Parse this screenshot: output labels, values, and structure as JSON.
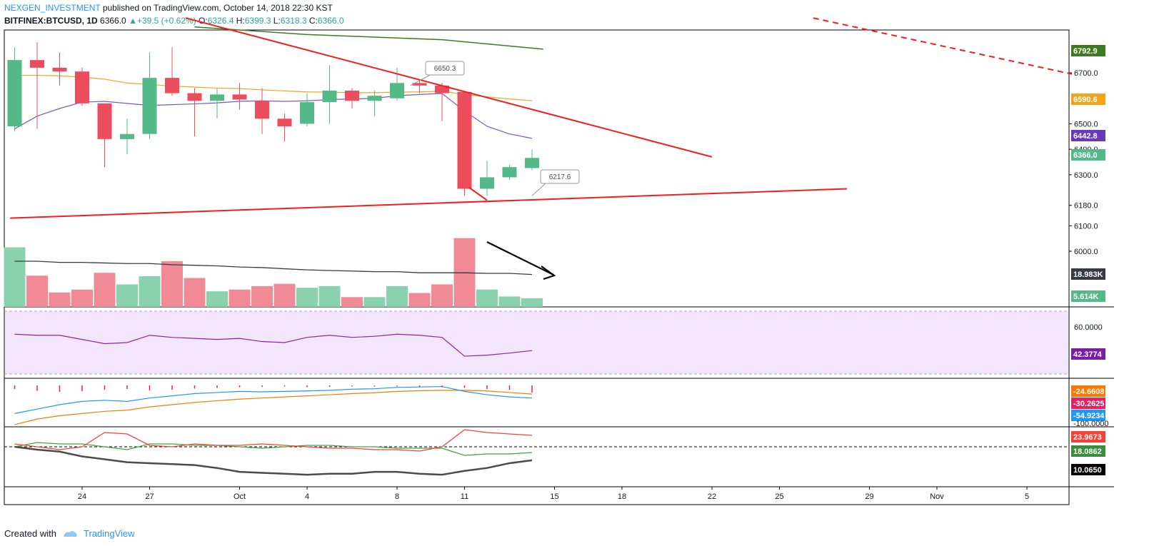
{
  "header": {
    "author": "NEXGEN_INVESTMENT",
    "published": "published on TradingView.com, October 14, 2018 22:30 KST",
    "symbol": "BITFINEX:BTCUSD, 1D",
    "last": "6366.0",
    "change": "+39.5 (+0.62%)",
    "o_label": "O:",
    "o": "6326.4",
    "h_label": "H:",
    "h": "6399.3",
    "l_label": "L:",
    "l": "6318.3",
    "c_label": "C:",
    "c": "6366.0"
  },
  "footer": {
    "created_with": "Created with",
    "brand": "TradingView"
  },
  "chart_data": {
    "type": "candlestick",
    "price_axis": {
      "ticks": [
        "6700.0",
        "6500.0",
        "6400.0",
        "6300.0",
        "6180.0",
        "6100.0",
        "6000.0"
      ],
      "tick_values": [
        6700,
        6500,
        6400,
        6300,
        6180,
        6100,
        6000
      ]
    },
    "x_axis": {
      "ticks": [
        "24",
        "27",
        "Oct",
        "4",
        "8",
        "11",
        "15",
        "18",
        "22",
        "25",
        "29",
        "Nov",
        "5"
      ],
      "tick_day_index": [
        3,
        6,
        10,
        13,
        17,
        20,
        24,
        27,
        31,
        34,
        38,
        41,
        45
      ]
    },
    "candles": [
      {
        "o": 6490,
        "h": 6800,
        "l": 6470,
        "c": 6750
      },
      {
        "o": 6750,
        "h": 6820,
        "l": 6480,
        "c": 6720
      },
      {
        "o": 6720,
        "h": 6780,
        "l": 6650,
        "c": 6705
      },
      {
        "o": 6705,
        "h": 6720,
        "l": 6570,
        "c": 6580
      },
      {
        "o": 6580,
        "h": 6580,
        "l": 6330,
        "c": 6440
      },
      {
        "o": 6440,
        "h": 6520,
        "l": 6380,
        "c": 6460
      },
      {
        "o": 6460,
        "h": 6780,
        "l": 6440,
        "c": 6680
      },
      {
        "o": 6680,
        "h": 6800,
        "l": 6610,
        "c": 6620
      },
      {
        "o": 6620,
        "h": 6640,
        "l": 6450,
        "c": 6590
      },
      {
        "o": 6590,
        "h": 6640,
        "l": 6520,
        "c": 6615
      },
      {
        "o": 6615,
        "h": 6660,
        "l": 6555,
        "c": 6595
      },
      {
        "o": 6590,
        "h": 6640,
        "l": 6460,
        "c": 6520
      },
      {
        "o": 6520,
        "h": 6540,
        "l": 6430,
        "c": 6490
      },
      {
        "o": 6500,
        "h": 6620,
        "l": 6490,
        "c": 6585
      },
      {
        "o": 6585,
        "h": 6730,
        "l": 6500,
        "c": 6630
      },
      {
        "o": 6630,
        "h": 6640,
        "l": 6560,
        "c": 6590
      },
      {
        "o": 6590,
        "h": 6630,
        "l": 6530,
        "c": 6610
      },
      {
        "o": 6600,
        "h": 6720,
        "l": 6590,
        "c": 6660
      },
      {
        "o": 6660,
        "h": 6670,
        "l": 6620,
        "c": 6650
      },
      {
        "o": 6650,
        "h": 6660,
        "l": 6510,
        "c": 6620
      },
      {
        "o": 6625,
        "h": 6625,
        "l": 6217,
        "c": 6245
      },
      {
        "o": 6245,
        "h": 6355,
        "l": 6217,
        "c": 6290
      },
      {
        "o": 6290,
        "h": 6340,
        "l": 6280,
        "c": 6330
      },
      {
        "o": 6326.4,
        "h": 6399.3,
        "l": 6318.3,
        "c": 6366.0
      }
    ],
    "volume": [
      10.3,
      5.4,
      2.5,
      3.0,
      5.9,
      3.9,
      5.3,
      7.9,
      5.0,
      2.7,
      3.0,
      3.6,
      4.0,
      3.3,
      3.6,
      1.7,
      1.7,
      3.6,
      2.4,
      3.9,
      11.9,
      3.0,
      1.8,
      1.5
    ],
    "volume_ma": [
      7.9,
      7.9,
      7.7,
      7.7,
      7.6,
      7.5,
      7.5,
      7.3,
      7.2,
      7.1,
      6.9,
      6.8,
      6.6,
      6.4,
      6.3,
      6.2,
      6.1,
      6.1,
      5.9,
      5.9,
      5.9,
      5.8,
      5.8,
      5.6
    ],
    "ma_long_green": [
      {
        "d": 8,
        "v": 6880
      },
      {
        "d": 13,
        "v": 6850
      },
      {
        "d": 19,
        "v": 6830
      },
      {
        "d": 23.5,
        "v": 6792.9
      }
    ],
    "ma_orange": [
      6690,
      6690,
      6688,
      6683,
      6675,
      6660,
      6654,
      6648,
      6644,
      6640,
      6638,
      6633,
      6629,
      6625,
      6624,
      6622,
      6622,
      6624,
      6625,
      6628,
      6615,
      6606,
      6597,
      6590.6
    ],
    "ma_purple": [
      6480,
      6530,
      6560,
      6585,
      6588,
      6580,
      6572,
      6575,
      6578,
      6582,
      6588,
      6590,
      6588,
      6590,
      6595,
      6597,
      6600,
      6610,
      6615,
      6619,
      6550,
      6490,
      6460,
      6442.8
    ],
    "trendlines": [
      {
        "name": "descending resistance",
        "from": {
          "d": 7.6,
          "v": 6915
        },
        "to": {
          "d": 31,
          "v": 6370
        }
      },
      {
        "name": "descending resistance extension",
        "from": {
          "d": 35.5,
          "v": 6915
        },
        "to": {
          "d": 47,
          "v": 6695
        },
        "dashed": true
      },
      {
        "name": "ascending support",
        "from": {
          "d": -0.2,
          "v": 6130
        },
        "to": {
          "d": 37,
          "v": 6245
        }
      }
    ],
    "annotations": [
      {
        "text": "6650.3",
        "d": 17.6,
        "v": 6650.3
      },
      {
        "text": "6217.6",
        "d": 23,
        "v": 6217.6
      }
    ],
    "rsi": {
      "ticks": [
        "60.0000"
      ],
      "values": [
        58,
        57,
        57,
        53,
        49,
        50,
        57,
        55,
        54,
        53,
        54,
        51,
        50,
        55,
        57,
        55,
        56,
        58,
        57,
        55,
        37,
        38,
        40,
        42.3774
      ],
      "current_label": "42.3774"
    },
    "macd": {
      "labels": [
        "-24.6608",
        "-30.2625",
        "-54.9234",
        "-100.0000"
      ],
      "fast": [
        -160,
        -140,
        -120,
        -105,
        -100,
        -105,
        -90,
        -80,
        -70,
        -65,
        -60,
        -62,
        -60,
        -58,
        -55,
        -50,
        -48,
        -42,
        -40,
        -38,
        -60,
        -75,
        -85,
        -90
      ],
      "slow": [
        -210,
        -185,
        -170,
        -160,
        -150,
        -145,
        -130,
        -120,
        -110,
        -102,
        -95,
        -90,
        -85,
        -80,
        -75,
        -70,
        -66,
        -60,
        -57,
        -55,
        -55,
        -58,
        -65,
        -72
      ],
      "hist": [
        -10,
        -15,
        -18,
        -16,
        -12,
        -10,
        -14,
        -12,
        -9,
        -7,
        -5,
        -4,
        -3,
        -5,
        -4,
        -3,
        -3,
        -3,
        -4,
        -5,
        -7,
        -10,
        -12,
        -20
      ]
    },
    "dmi": {
      "labels": [
        "23.9673",
        "18.0862",
        "10.0650"
      ],
      "plus_di": [
        18,
        21,
        20,
        20,
        18,
        16,
        20,
        20,
        19,
        19,
        18,
        17,
        18,
        19,
        19,
        18,
        18,
        17,
        17,
        17,
        12,
        13,
        13,
        14
      ],
      "minus_di": [
        20,
        18,
        16,
        18,
        28,
        27,
        19,
        18,
        20,
        19,
        19,
        20,
        19,
        18,
        17,
        17,
        16,
        16,
        15,
        18,
        30,
        28,
        27,
        26
      ],
      "adx": [
        20,
        17,
        15,
        10,
        7,
        4,
        3,
        2,
        1,
        -2,
        -6,
        -7,
        -8,
        -9,
        -8,
        -8,
        -6,
        -6,
        -8,
        -9,
        -5,
        -2,
        3,
        6
      ],
      "reference_line": 18
    },
    "price_tags": [
      {
        "text": "6792.9",
        "color": "#3d7a21"
      },
      {
        "text": "6590.6",
        "color": "#f4a31b"
      },
      {
        "text": "6442.8",
        "color": "#673ab7"
      },
      {
        "text": "6366.0",
        "color": "#53b987"
      },
      {
        "text": "18.983K",
        "color": "#363a45"
      },
      {
        "text": "5.614K",
        "color": "#53b987"
      },
      {
        "text": "42.3774",
        "color": "#7b1fa2"
      },
      {
        "text": "-24.6608",
        "color": "#f57c00"
      },
      {
        "text": "-30.2625",
        "color": "#e91e63"
      },
      {
        "text": "-54.9234",
        "color": "#2196f3"
      },
      {
        "text": "23.9673",
        "color": "#f44336"
      },
      {
        "text": "18.0862",
        "color": "#388e3c"
      },
      {
        "text": "10.0650",
        "color": "#000000"
      }
    ],
    "colors": {
      "up": "#53b987",
      "down": "#eb4d5c",
      "vol_up": "#8ad1ae",
      "vol_down": "#f08a96",
      "trend": "#f21e1e",
      "rsi_bg": "#f3e5fc"
    }
  }
}
